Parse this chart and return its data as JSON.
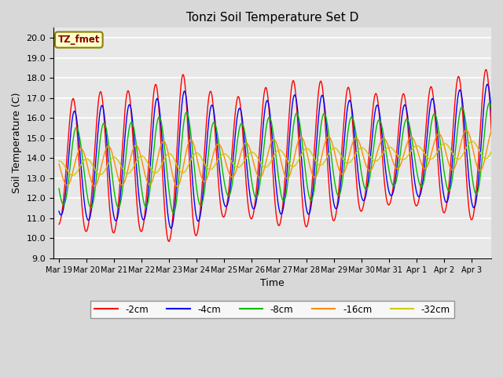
{
  "title": "Tonzi Soil Temperature Set D",
  "xlabel": "Time",
  "ylabel": "Soil Temperature (C)",
  "ylim": [
    9.0,
    20.5
  ],
  "yticks": [
    9.0,
    10.0,
    11.0,
    12.0,
    13.0,
    14.0,
    15.0,
    16.0,
    17.0,
    18.0,
    19.0,
    20.0
  ],
  "line_colors": {
    "-2cm": "#FF0000",
    "-4cm": "#0000FF",
    "-8cm": "#00BB00",
    "-16cm": "#FF8C00",
    "-32cm": "#CCCC00"
  },
  "legend_label_box": "TZ_fmet",
  "plot_bg_color": "#E8E8E8",
  "grid_color": "#FFFFFF",
  "xtick_labels": [
    "Mar 19",
    "Mar 20",
    "Mar 21",
    "Mar 22",
    "Mar 23",
    "Mar 24",
    "Mar 25",
    "Mar 26",
    "Mar 27",
    "Mar 28",
    "Mar 29",
    "Mar 30",
    "Mar 31",
    "Apr 1",
    "Apr 2",
    "Apr 3"
  ],
  "n_days": 16,
  "pts_per_day": 48
}
